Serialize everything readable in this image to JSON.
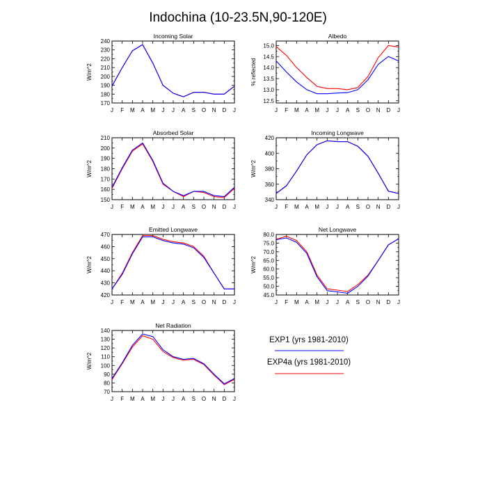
{
  "title": "Indochina (10-23.5N,90-120E)",
  "colors": {
    "exp1": "#0000ff",
    "exp4a": "#ff0000"
  },
  "legend": [
    {
      "label": "EXP1 (yrs 1981-2010)",
      "color": "#0000ff"
    },
    {
      "label": "EXP4a (yrs 1981-2010)",
      "color": "#ff0000"
    }
  ],
  "chart_data": [
    {
      "type": "line",
      "title": "Incoming Solar",
      "ylabel": "W/m^2",
      "categories": [
        "J",
        "F",
        "M",
        "A",
        "M",
        "J",
        "J",
        "A",
        "S",
        "O",
        "N",
        "D",
        "J"
      ],
      "ylim": [
        170,
        240
      ],
      "yticks": [
        {
          "v": 170,
          "t": "170"
        },
        {
          "v": 180,
          "t": "180"
        },
        {
          "v": 190,
          "t": "190"
        },
        {
          "v": 200,
          "t": "200"
        },
        {
          "v": 210,
          "t": "210"
        },
        {
          "v": 220,
          "t": "220"
        },
        {
          "v": 230,
          "t": "230"
        },
        {
          "v": 240,
          "t": "240"
        }
      ],
      "series": [
        {
          "name": "EXP4a (yrs 1981-2010)",
          "color": "#ff0000",
          "values": [
            189,
            210,
            229,
            236,
            215,
            190,
            181,
            177,
            182,
            182,
            180,
            180,
            189
          ]
        },
        {
          "name": "EXP1 (yrs 1981-2010)",
          "color": "#0000ff",
          "values": [
            189,
            210,
            229,
            236,
            215,
            190,
            181,
            177,
            182,
            182,
            180,
            180,
            189
          ]
        }
      ]
    },
    {
      "type": "line",
      "title": "Albedo",
      "ylabel": "% reflected",
      "categories": [
        "J",
        "F",
        "M",
        "A",
        "M",
        "J",
        "J",
        "A",
        "S",
        "O",
        "N",
        "D",
        "J"
      ],
      "ylim": [
        12.4,
        15.2
      ],
      "yticks": [
        {
          "v": 12.5,
          "t": "12.5"
        },
        {
          "v": 13.0,
          "t": "13.0"
        },
        {
          "v": 13.5,
          "t": "13.5"
        },
        {
          "v": 14.0,
          "t": "14.0"
        },
        {
          "v": 14.5,
          "t": "14.5"
        },
        {
          "v": 15.0,
          "t": "15.0"
        }
      ],
      "series": [
        {
          "name": "EXP4a (yrs 1981-2010)",
          "color": "#ff0000",
          "values": [
            14.95,
            14.55,
            14.0,
            13.55,
            13.15,
            13.05,
            13.05,
            13.0,
            13.1,
            13.6,
            14.45,
            15.0,
            14.93
          ]
        },
        {
          "name": "EXP1 (yrs 1981-2010)",
          "color": "#0000ff",
          "values": [
            14.3,
            13.8,
            13.35,
            13.0,
            12.82,
            12.82,
            12.85,
            12.87,
            13.0,
            13.45,
            14.15,
            14.5,
            14.3
          ]
        }
      ]
    },
    {
      "type": "line",
      "title": "Absorbed Solar",
      "ylabel": "W/m^2",
      "categories": [
        "J",
        "F",
        "M",
        "A",
        "M",
        "J",
        "J",
        "A",
        "S",
        "O",
        "N",
        "D",
        "J"
      ],
      "ylim": [
        150,
        210
      ],
      "yticks": [
        {
          "v": 150,
          "t": "150"
        },
        {
          "v": 160,
          "t": "160"
        },
        {
          "v": 170,
          "t": "170"
        },
        {
          "v": 180,
          "t": "180"
        },
        {
          "v": 190,
          "t": "190"
        },
        {
          "v": 200,
          "t": "200"
        },
        {
          "v": 210,
          "t": "210"
        }
      ],
      "series": [
        {
          "name": "EXP4a (yrs 1981-2010)",
          "color": "#ff0000",
          "values": [
            161,
            180,
            197,
            204,
            187,
            165,
            158,
            153,
            158,
            157,
            153,
            152,
            161
          ]
        },
        {
          "name": "EXP1 (yrs 1981-2010)",
          "color": "#0000ff",
          "values": [
            162,
            181,
            198,
            205,
            188,
            166,
            158,
            154,
            158,
            158,
            154,
            153,
            162
          ]
        }
      ]
    },
    {
      "type": "line",
      "title": "Incoming Longwave",
      "ylabel": "W/m^2",
      "categories": [
        "J",
        "F",
        "M",
        "A",
        "M",
        "J",
        "J",
        "A",
        "S",
        "O",
        "N",
        "D",
        "J"
      ],
      "ylim": [
        340,
        420
      ],
      "yticks": [
        {
          "v": 340,
          "t": "340"
        },
        {
          "v": 360,
          "t": "360"
        },
        {
          "v": 380,
          "t": "380"
        },
        {
          "v": 400,
          "t": "400"
        },
        {
          "v": 420,
          "t": "420"
        }
      ],
      "series": [
        {
          "name": "EXP4a (yrs 1981-2010)",
          "color": "#ff0000",
          "values": [
            348,
            358,
            377,
            398,
            411,
            416,
            415,
            415,
            409,
            396,
            374,
            351,
            348
          ]
        },
        {
          "name": "EXP1 (yrs 1981-2010)",
          "color": "#0000ff",
          "values": [
            348,
            358,
            377,
            398,
            411,
            416,
            415,
            415,
            409,
            396,
            374,
            351,
            348
          ]
        }
      ]
    },
    {
      "type": "line",
      "title": "Emitted Longwave",
      "ylabel": "W/m^2",
      "categories": [
        "J",
        "F",
        "M",
        "A",
        "M",
        "J",
        "J",
        "A",
        "S",
        "O",
        "N",
        "D",
        "J"
      ],
      "ylim": [
        420,
        470
      ],
      "yticks": [
        {
          "v": 420,
          "t": "420"
        },
        {
          "v": 430,
          "t": "430"
        },
        {
          "v": 440,
          "t": "440"
        },
        {
          "v": 450,
          "t": "450"
        },
        {
          "v": 460,
          "t": "460"
        },
        {
          "v": 470,
          "t": "470"
        }
      ],
      "series": [
        {
          "name": "EXP4a (yrs 1981-2010)",
          "color": "#ff0000",
          "values": [
            425,
            438,
            455,
            469,
            469,
            466,
            464,
            463,
            460,
            452,
            438,
            425,
            425
          ]
        },
        {
          "name": "EXP1 (yrs 1981-2010)",
          "color": "#0000ff",
          "values": [
            425,
            437,
            454,
            468,
            468,
            465,
            463,
            462,
            459,
            451,
            438,
            425,
            425
          ]
        }
      ]
    },
    {
      "type": "line",
      "title": "Net Longwave",
      "ylabel": "W/m^2",
      "categories": [
        "J",
        "F",
        "M",
        "A",
        "M",
        "J",
        "J",
        "A",
        "S",
        "O",
        "N",
        "D",
        "J"
      ],
      "ylim": [
        45,
        80
      ],
      "yticks": [
        {
          "v": 45,
          "t": "45.0"
        },
        {
          "v": 50,
          "t": "50.0"
        },
        {
          "v": 55,
          "t": "55.0"
        },
        {
          "v": 60,
          "t": "60.0"
        },
        {
          "v": 65,
          "t": "65.0"
        },
        {
          "v": 70,
          "t": "70.0"
        },
        {
          "v": 75,
          "t": "75.0"
        },
        {
          "v": 80,
          "t": "80.0"
        }
      ],
      "series": [
        {
          "name": "EXP4a (yrs 1981-2010)",
          "color": "#ff0000",
          "values": [
            77.2,
            79.0,
            76.5,
            70.0,
            56.5,
            48.5,
            47.8,
            47.0,
            51.0,
            56.5,
            65.0,
            74.0,
            77.5
          ]
        },
        {
          "name": "EXP1 (yrs 1981-2010)",
          "color": "#0000ff",
          "values": [
            77.0,
            78.0,
            75.5,
            69.0,
            55.5,
            47.5,
            46.8,
            46.0,
            50.0,
            56.0,
            65.0,
            74.0,
            77.5
          ]
        }
      ]
    },
    {
      "type": "line",
      "title": "Net Radiation",
      "ylabel": "W/m^2",
      "categories": [
        "J",
        "F",
        "M",
        "A",
        "M",
        "J",
        "J",
        "A",
        "S",
        "O",
        "N",
        "D",
        "J"
      ],
      "ylim": [
        70,
        140
      ],
      "yticks": [
        {
          "v": 70,
          "t": "70"
        },
        {
          "v": 80,
          "t": "80"
        },
        {
          "v": 90,
          "t": "90"
        },
        {
          "v": 100,
          "t": "100"
        },
        {
          "v": 110,
          "t": "110"
        },
        {
          "v": 120,
          "t": "120"
        },
        {
          "v": 130,
          "t": "130"
        },
        {
          "v": 140,
          "t": "140"
        }
      ],
      "series": [
        {
          "name": "EXP4a (yrs 1981-2010)",
          "color": "#ff0000",
          "values": [
            84,
            102,
            121,
            134,
            130,
            116,
            109,
            106,
            107,
            101,
            89,
            78,
            84
          ]
        },
        {
          "name": "EXP1 (yrs 1981-2010)",
          "color": "#0000ff",
          "values": [
            85,
            103,
            123,
            136,
            133,
            118,
            110,
            107,
            108,
            102,
            90,
            79,
            85
          ]
        }
      ]
    }
  ]
}
